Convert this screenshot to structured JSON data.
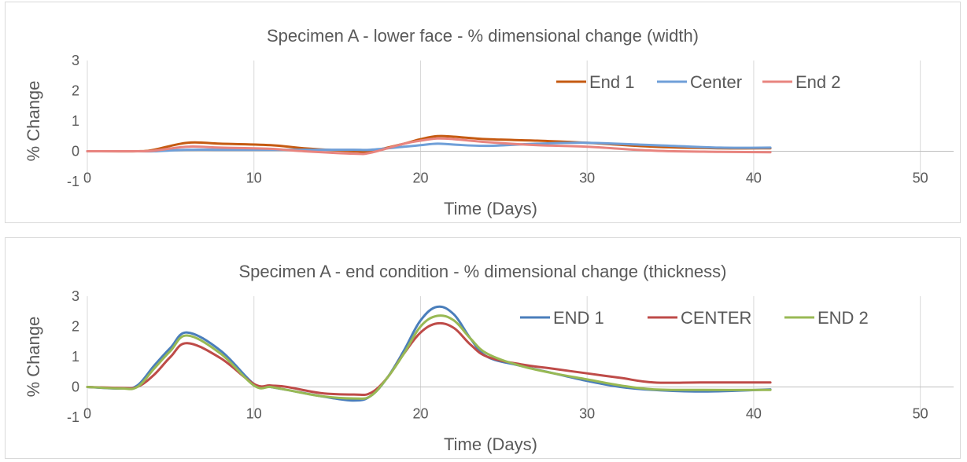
{
  "chart_data": [
    {
      "type": "line",
      "title": "Specimen A - lower face - % dimensional change (width)",
      "xlabel": "Time (Days)",
      "ylabel": "% Change",
      "xlim": [
        0,
        52
      ],
      "ylim": [
        -1,
        3
      ],
      "xticks": [
        0,
        10,
        20,
        30,
        40,
        50
      ],
      "yticks": [
        -1,
        0,
        1,
        2,
        3
      ],
      "grid": "vertical",
      "legend": "top-right",
      "series": [
        {
          "name": "End 1",
          "color": "#c55a11",
          "x": [
            0,
            3,
            4,
            6,
            8,
            11,
            13,
            16,
            17,
            19,
            20,
            21,
            22,
            24,
            27,
            30,
            34,
            38,
            41
          ],
          "y": [
            0,
            0,
            0.05,
            0.28,
            0.25,
            0.2,
            0.1,
            0,
            0,
            0.25,
            0.4,
            0.5,
            0.48,
            0.4,
            0.35,
            0.28,
            0.15,
            0.1,
            0.1
          ]
        },
        {
          "name": "Center",
          "color": "#6f9fd8",
          "x": [
            0,
            3,
            4,
            6,
            8,
            11,
            13,
            16,
            17,
            19,
            20,
            21,
            22,
            24,
            27,
            30,
            34,
            38,
            41
          ],
          "y": [
            0,
            0,
            0,
            0.05,
            0.05,
            0.05,
            0.05,
            0.05,
            0.05,
            0.15,
            0.2,
            0.25,
            0.22,
            0.18,
            0.25,
            0.28,
            0.2,
            0.12,
            0.12
          ]
        },
        {
          "name": "End 2",
          "color": "#e8847f",
          "x": [
            0,
            3,
            4,
            6,
            8,
            11,
            13,
            16,
            17,
            19,
            20,
            21,
            22,
            24,
            27,
            30,
            34,
            38,
            41
          ],
          "y": [
            0,
            0,
            0.02,
            0.15,
            0.12,
            0.08,
            0,
            -0.08,
            -0.05,
            0.25,
            0.35,
            0.42,
            0.4,
            0.3,
            0.2,
            0.15,
            0.02,
            -0.02,
            -0.03
          ]
        }
      ]
    },
    {
      "type": "line",
      "title": "Specimen A - end condition - % dimensional change (thickness)",
      "xlabel": "Time (Days)",
      "ylabel": "% Change",
      "xlim": [
        0,
        52
      ],
      "ylim": [
        -1,
        3
      ],
      "xticks": [
        0,
        10,
        20,
        30,
        40,
        50
      ],
      "yticks": [
        -1,
        0,
        1,
        2,
        3
      ],
      "grid": "vertical",
      "legend": "top-right",
      "series": [
        {
          "name": "END 1",
          "color": "#4a7ebb",
          "x": [
            0,
            2,
            3,
            4,
            5,
            6,
            8,
            10,
            11,
            12,
            14,
            16,
            17,
            18,
            19,
            20,
            21,
            22,
            23,
            24,
            26,
            28,
            30,
            32,
            34,
            37,
            41
          ],
          "y": [
            0,
            -0.05,
            0.05,
            0.7,
            1.3,
            1.8,
            1.2,
            0.1,
            0,
            -0.1,
            -0.3,
            -0.45,
            -0.3,
            0.3,
            1.2,
            2.2,
            2.65,
            2.4,
            1.6,
            1.0,
            0.7,
            0.45,
            0.2,
            0,
            -0.1,
            -0.15,
            -0.08
          ]
        },
        {
          "name": "CENTER",
          "color": "#be4b48",
          "x": [
            0,
            2,
            3,
            4,
            5,
            6,
            8,
            10,
            11,
            12,
            14,
            16,
            17,
            18,
            19,
            20,
            21,
            22,
            23,
            24,
            26,
            28,
            30,
            32,
            34,
            37,
            41
          ],
          "y": [
            0,
            -0.03,
            0,
            0.4,
            1.0,
            1.45,
            0.95,
            0.1,
            0.05,
            0,
            -0.2,
            -0.25,
            -0.2,
            0.3,
            1.1,
            1.8,
            2.1,
            1.95,
            1.4,
            1.0,
            0.75,
            0.6,
            0.45,
            0.3,
            0.15,
            0.15,
            0.15
          ]
        },
        {
          "name": "END 2",
          "color": "#98b954",
          "x": [
            0,
            2,
            3,
            4,
            5,
            6,
            8,
            10,
            11,
            12,
            14,
            16,
            17,
            18,
            19,
            20,
            21,
            22,
            23,
            24,
            26,
            28,
            30,
            32,
            34,
            37,
            41
          ],
          "y": [
            0,
            -0.05,
            0,
            0.6,
            1.2,
            1.7,
            1.1,
            0.05,
            0,
            -0.1,
            -0.3,
            -0.38,
            -0.3,
            0.3,
            1.1,
            2.0,
            2.35,
            2.2,
            1.6,
            1.1,
            0.7,
            0.45,
            0.25,
            0.05,
            -0.08,
            -0.1,
            -0.1
          ]
        }
      ]
    }
  ]
}
